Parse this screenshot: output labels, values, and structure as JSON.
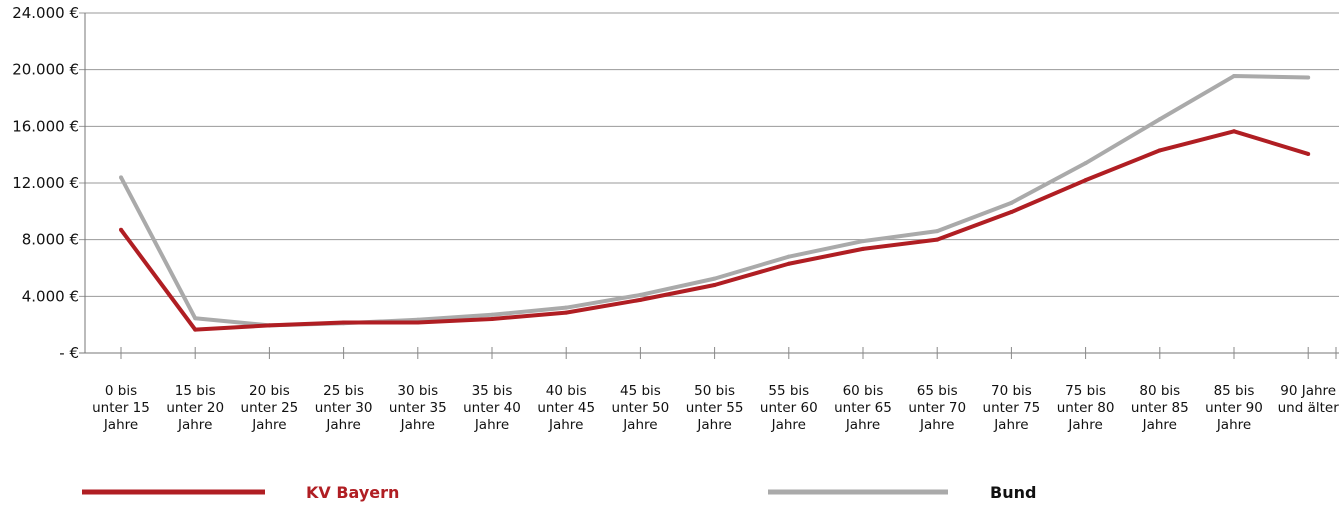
{
  "chart_data": {
    "type": "line",
    "categories": [
      "0 bis unter 15 Jahre",
      "15 bis unter 20 Jahre",
      "20 bis unter 25 Jahre",
      "25 bis unter 30 Jahre",
      "30 bis unter 35 Jahre",
      "35 bis unter 40 Jahre",
      "40 bis unter 45 Jahre",
      "45 bis unter 50 Jahre",
      "50 bis unter 55 Jahre",
      "55 bis unter 60 Jahre",
      "60 bis unter 65 Jahre",
      "65 bis unter 70 Jahre",
      "70 bis unter 75 Jahre",
      "75 bis unter 80 Jahre",
      "80 bis unter 85 Jahre",
      "85 bis unter 90 Jahre",
      "90 Jahre und älter"
    ],
    "category_lines": [
      [
        "0 bis",
        "unter 15",
        "Jahre"
      ],
      [
        "15 bis",
        "unter 20",
        "Jahre"
      ],
      [
        "20 bis",
        "unter 25",
        "Jahre"
      ],
      [
        "25 bis",
        "unter 30",
        "Jahre"
      ],
      [
        "30 bis",
        "unter 35",
        "Jahre"
      ],
      [
        "35 bis",
        "unter 40",
        "Jahre"
      ],
      [
        "40 bis",
        "unter 45",
        "Jahre"
      ],
      [
        "45 bis",
        "unter 50",
        "Jahre"
      ],
      [
        "50 bis",
        "unter 55",
        "Jahre"
      ],
      [
        "55 bis",
        "unter 60",
        "Jahre"
      ],
      [
        "60 bis",
        "unter 65",
        "Jahre"
      ],
      [
        "65 bis",
        "unter 70",
        "Jahre"
      ],
      [
        "70 bis",
        "unter 75",
        "Jahre"
      ],
      [
        "75 bis",
        "unter 80",
        "Jahre"
      ],
      [
        "80 bis",
        "unter 85",
        "Jahre"
      ],
      [
        "85 bis",
        "unter 90",
        "Jahre"
      ],
      [
        "90 Jahre",
        "und älter"
      ]
    ],
    "series": [
      {
        "name": "KV Bayern",
        "color": "#b01e23",
        "values": [
          8700,
          1650,
          1950,
          2150,
          2150,
          2400,
          2850,
          3750,
          4800,
          6300,
          7350,
          8000,
          9950,
          12200,
          14300,
          15650,
          14050
        ]
      },
      {
        "name": "Bund",
        "color": "#aaaaaa",
        "values": [
          12400,
          2450,
          1950,
          2100,
          2350,
          2700,
          3200,
          4100,
          5250,
          6800,
          7900,
          8600,
          10600,
          13400,
          16500,
          19550,
          19450
        ]
      }
    ],
    "ylim": [
      0,
      24000
    ],
    "y_ticks": [
      {
        "value": 0,
        "label": "- €"
      },
      {
        "value": 4000,
        "label": "4.000 €"
      },
      {
        "value": 8000,
        "label": "8.000 €"
      },
      {
        "value": 12000,
        "label": "12.000 €"
      },
      {
        "value": 16000,
        "label": "16.000 €"
      },
      {
        "value": 20000,
        "label": "20.000 €"
      },
      {
        "value": 24000,
        "label": "24.000 €"
      }
    ],
    "grid": true,
    "legend_position": "bottom",
    "title": "",
    "xlabel": "",
    "ylabel": ""
  }
}
